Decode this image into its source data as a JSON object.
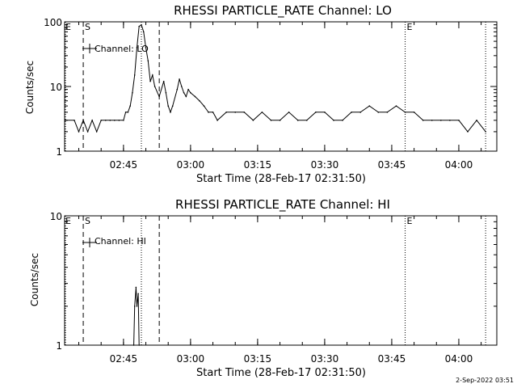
{
  "footer_date": "2-Sep-2022 03:51",
  "chart_data": [
    {
      "type": "line",
      "title": "RHESSI PARTICLE_RATE Channel: LO",
      "xlabel": "Start Time (28-Feb-17 02:31:50)",
      "ylabel": "Counts/sec",
      "yscale": "log",
      "ylim": [
        1,
        100
      ],
      "y_ticks": [
        "1",
        "10",
        "100"
      ],
      "x_ticks": [
        "02:45",
        "03:00",
        "03:15",
        "03:30",
        "03:45",
        "04:00"
      ],
      "legend": "Channel: LO",
      "legend_position": "top-left",
      "markers": [
        {
          "label": "E",
          "style": "dotted",
          "time": "02:31:50"
        },
        {
          "label": "S",
          "style": "dashed",
          "time": "02:36"
        },
        {
          "label": "",
          "style": "dotted",
          "time": "02:49"
        },
        {
          "label": "",
          "style": "dashed",
          "time": "02:53"
        },
        {
          "label": "E",
          "style": "dotted",
          "time": "03:48"
        },
        {
          "label": "",
          "style": "dotted",
          "time": "04:06"
        }
      ],
      "x": [
        "02:32",
        "02:34",
        "02:35",
        "02:36",
        "02:37",
        "02:38",
        "02:39",
        "02:40",
        "02:41",
        "02:42",
        "02:43",
        "02:44",
        "02:45",
        "02:45.5",
        "02:46",
        "02:46.5",
        "02:47",
        "02:47.5",
        "02:48",
        "02:48.5",
        "02:49",
        "02:49.5",
        "02:50",
        "02:50.5",
        "02:51",
        "02:51.5",
        "02:52",
        "02:53",
        "02:54",
        "02:54.5",
        "02:55",
        "02:55.5",
        "02:56",
        "02:57",
        "02:57.5",
        "02:58",
        "02:58.5",
        "02:59",
        "02:59.5",
        "03:00",
        "03:01",
        "03:02",
        "03:03",
        "03:04",
        "03:05",
        "03:06",
        "03:08",
        "03:10",
        "03:12",
        "03:14",
        "03:16",
        "03:18",
        "03:20",
        "03:22",
        "03:24",
        "03:26",
        "03:28",
        "03:30",
        "03:32",
        "03:34",
        "03:36",
        "03:38",
        "03:40",
        "03:42",
        "03:44",
        "03:46",
        "03:48",
        "03:50",
        "03:52",
        "03:54",
        "03:56",
        "03:58",
        "04:00",
        "04:02",
        "04:04",
        "04:06"
      ],
      "y": [
        3,
        3,
        2,
        3,
        2,
        3,
        2,
        3,
        3,
        3,
        3,
        3,
        3,
        4,
        4,
        5,
        8,
        15,
        40,
        85,
        90,
        70,
        40,
        25,
        12,
        15,
        10,
        7,
        12,
        8,
        5,
        4,
        5,
        9,
        13,
        10,
        8,
        7,
        9,
        8,
        7,
        6,
        5,
        4,
        4,
        3,
        4,
        4,
        4,
        3,
        4,
        3,
        3,
        4,
        3,
        3,
        4,
        4,
        3,
        3,
        4,
        4,
        5,
        4,
        4,
        5,
        4,
        4,
        3,
        3,
        3,
        3,
        3,
        2,
        3,
        2
      ]
    },
    {
      "type": "line",
      "title": "RHESSI PARTICLE_RATE Channel: HI",
      "xlabel": "Start Time (28-Feb-17 02:31:50)",
      "ylabel": "Counts/sec",
      "yscale": "log",
      "ylim": [
        1,
        10
      ],
      "y_ticks": [
        "1",
        "10"
      ],
      "x_ticks": [
        "02:45",
        "03:00",
        "03:15",
        "03:30",
        "03:45",
        "04:00"
      ],
      "legend": "Channel: HI",
      "legend_position": "top-left",
      "markers": [
        {
          "label": "E",
          "style": "dotted",
          "time": "02:31:50"
        },
        {
          "label": "S",
          "style": "dashed",
          "time": "02:36"
        },
        {
          "label": "",
          "style": "dotted",
          "time": "02:49"
        },
        {
          "label": "",
          "style": "dashed",
          "time": "02:53"
        },
        {
          "label": "E",
          "style": "dotted",
          "time": "03:48"
        },
        {
          "label": "",
          "style": "dotted",
          "time": "04:06"
        }
      ],
      "x": [
        "02:47.3",
        "02:47.5",
        "02:47.8",
        "02:48",
        "02:48.3",
        "02:48.5"
      ],
      "y": [
        1,
        2,
        2.8,
        2,
        2.5,
        1
      ]
    }
  ]
}
